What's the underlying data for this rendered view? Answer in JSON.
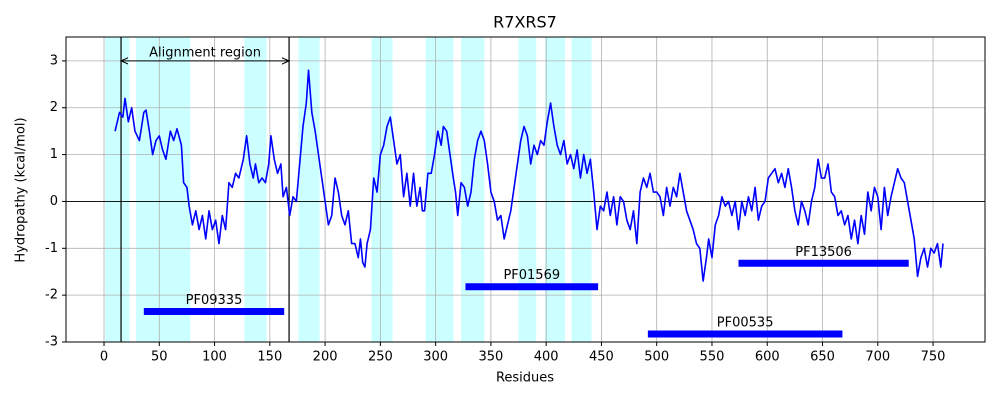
{
  "chart_data": {
    "type": "line",
    "title": "R7XRS7",
    "x_label": "Residues",
    "y_label": "Hydropathy (kcal/mol)",
    "xlim": [
      -34.4,
      797
    ],
    "ylim": [
      -3,
      3.51
    ],
    "xticks": [
      0,
      50,
      100,
      150,
      200,
      250,
      300,
      350,
      400,
      450,
      500,
      550,
      600,
      650,
      700,
      750
    ],
    "yticks": [
      -3,
      -2,
      -1,
      0,
      1,
      2,
      3
    ],
    "grid": true,
    "hline": 0,
    "color": "#0000ff",
    "x": [
      10,
      14,
      17,
      19,
      22,
      25,
      28,
      32,
      36,
      38,
      41,
      44,
      47,
      50,
      53,
      56,
      60,
      63,
      66,
      70,
      72,
      75,
      77,
      80,
      83,
      86,
      89,
      92,
      95,
      98,
      101,
      104,
      107,
      110,
      113,
      116,
      119,
      122,
      126,
      129,
      132,
      135,
      137,
      140,
      143,
      146,
      149,
      151,
      154,
      157,
      160,
      162,
      165,
      168,
      171,
      174,
      177,
      180,
      183,
      185,
      188,
      191,
      194,
      197,
      200,
      203,
      206,
      209,
      212,
      215,
      218,
      221,
      224,
      227,
      230,
      232,
      234,
      236,
      238,
      241,
      244,
      247,
      250,
      253,
      256,
      259,
      262,
      265,
      268,
      271,
      274,
      277,
      280,
      283,
      286,
      288,
      290,
      293,
      296,
      299,
      302,
      305,
      307,
      310,
      313,
      316,
      318,
      320,
      323,
      326,
      329,
      332,
      335,
      338,
      341,
      344,
      347,
      350,
      353,
      356,
      359,
      362,
      365,
      368,
      371,
      374,
      377,
      380,
      383,
      386,
      389,
      392,
      395,
      398,
      401,
      404,
      407,
      410,
      413,
      416,
      419,
      422,
      425,
      428,
      431,
      434,
      437,
      440,
      443,
      446,
      449,
      452,
      455,
      458,
      461,
      464,
      467,
      470,
      473,
      476,
      479,
      482,
      485,
      488,
      491,
      494,
      497,
      500,
      503,
      506,
      509,
      512,
      515,
      518,
      521,
      524,
      527,
      530,
      533,
      536,
      539,
      542,
      545,
      547,
      550,
      553,
      556,
      559,
      562,
      565,
      568,
      571,
      574,
      577,
      580,
      583,
      586,
      589,
      592,
      595,
      598,
      601,
      604,
      607,
      610,
      613,
      616,
      619,
      622,
      625,
      628,
      631,
      634,
      637,
      640,
      643,
      646,
      649,
      652,
      655,
      658,
      661,
      664,
      667,
      670,
      673,
      676,
      679,
      682,
      685,
      688,
      691,
      694,
      697,
      700,
      703,
      706,
      709,
      712,
      715,
      718,
      721,
      724,
      727,
      730,
      733,
      736,
      739,
      742,
      745,
      748,
      751,
      754,
      757,
      759
    ],
    "values": [
      1.5,
      1.9,
      1.8,
      2.2,
      1.7,
      2.0,
      1.5,
      1.3,
      1.9,
      1.95,
      1.5,
      1.0,
      1.3,
      1.4,
      1.1,
      0.9,
      1.5,
      1.3,
      1.55,
      1.2,
      0.4,
      0.3,
      -0.1,
      -0.5,
      -0.2,
      -0.6,
      -0.3,
      -0.8,
      -0.2,
      -0.6,
      -0.4,
      -0.9,
      -0.3,
      -0.6,
      0.4,
      0.3,
      0.6,
      0.5,
      0.9,
      1.4,
      0.8,
      0.5,
      0.8,
      0.4,
      0.5,
      0.4,
      0.8,
      1.4,
      0.9,
      0.6,
      0.8,
      0.1,
      0.3,
      -0.3,
      0.1,
      0.0,
      0.8,
      1.6,
      2.1,
      2.8,
      1.9,
      1.5,
      1.0,
      0.5,
      0.0,
      -0.5,
      -0.3,
      0.5,
      0.2,
      -0.3,
      -0.5,
      -0.2,
      -0.9,
      -0.9,
      -1.2,
      -0.8,
      -1.3,
      -1.4,
      -0.9,
      -0.6,
      0.5,
      0.2,
      1.0,
      1.2,
      1.6,
      1.8,
      1.3,
      0.8,
      1.0,
      0.1,
      0.6,
      -0.1,
      0.6,
      -0.1,
      0.3,
      -0.2,
      -0.2,
      0.6,
      0.6,
      1.0,
      1.5,
      1.2,
      1.6,
      1.5,
      1.0,
      0.5,
      0.2,
      -0.3,
      0.4,
      0.3,
      -0.1,
      0.2,
      0.9,
      1.3,
      1.5,
      1.3,
      0.8,
      0.2,
      0.0,
      -0.4,
      -0.3,
      -0.8,
      -0.5,
      -0.2,
      0.3,
      0.8,
      1.3,
      1.6,
      1.4,
      0.8,
      1.2,
      1.0,
      1.3,
      1.2,
      1.7,
      2.1,
      1.6,
      1.2,
      1.0,
      1.3,
      0.8,
      1.0,
      0.7,
      1.1,
      0.5,
      1.0,
      0.6,
      0.9,
      0.2,
      -0.6,
      -0.1,
      -0.2,
      0.2,
      -0.3,
      0.1,
      -0.5,
      0.1,
      0.0,
      -0.4,
      -0.6,
      -0.2,
      -0.9,
      0.2,
      0.5,
      0.3,
      0.6,
      0.2,
      0.2,
      0.1,
      -0.3,
      0.3,
      -0.1,
      0.3,
      0.1,
      0.6,
      0.2,
      -0.2,
      -0.4,
      -0.6,
      -0.9,
      -1.0,
      -1.7,
      -1.2,
      -0.8,
      -1.2,
      -0.5,
      -0.3,
      0.1,
      -0.1,
      0.0,
      -0.3,
      0.0,
      -0.6,
      0.0,
      -0.3,
      0.1,
      -0.2,
      0.3,
      -0.4,
      -0.1,
      0.0,
      0.5,
      0.6,
      0.7,
      0.4,
      0.6,
      0.3,
      0.7,
      0.3,
      -0.2,
      -0.5,
      0.0,
      -0.2,
      -0.5,
      0.0,
      0.3,
      0.9,
      0.5,
      0.5,
      0.8,
      0.2,
      0.1,
      -0.3,
      -0.2,
      -0.5,
      -0.3,
      -0.8,
      -0.4,
      -0.9,
      -0.3,
      -0.7,
      0.2,
      -0.2,
      0.3,
      0.1,
      -0.6,
      0.3,
      -0.3,
      0.1,
      0.4,
      0.7,
      0.5,
      0.4,
      0.0,
      -0.4,
      -0.8,
      -1.6,
      -1.2,
      -1.0,
      -1.4,
      -1.0,
      -1.1,
      -0.9,
      -1.4,
      -0.9
    ],
    "span_color": "#ccffff",
    "spans": [
      [
        1,
        23
      ],
      [
        29,
        78
      ],
      [
        127,
        147
      ],
      [
        176,
        195
      ],
      [
        242,
        261
      ],
      [
        291,
        316
      ],
      [
        323,
        344
      ],
      [
        375,
        391
      ],
      [
        399,
        417
      ],
      [
        423,
        441
      ]
    ],
    "vlines": [
      15.4,
      167.4
    ],
    "annotation": {
      "text": "Alignment region",
      "x": [
        15.4,
        167.4
      ],
      "y": 3
    },
    "domain_color": "#0000ff",
    "domains": [
      {
        "name": "PF09335",
        "start": 36,
        "end": 163,
        "y": -2.35
      },
      {
        "name": "PF01569",
        "start": 327,
        "end": 447,
        "y": -1.82
      },
      {
        "name": "PF13506",
        "start": 574,
        "end": 728,
        "y": -1.32
      },
      {
        "name": "PF00535",
        "start": 492,
        "end": 668,
        "y": -2.83
      }
    ]
  }
}
